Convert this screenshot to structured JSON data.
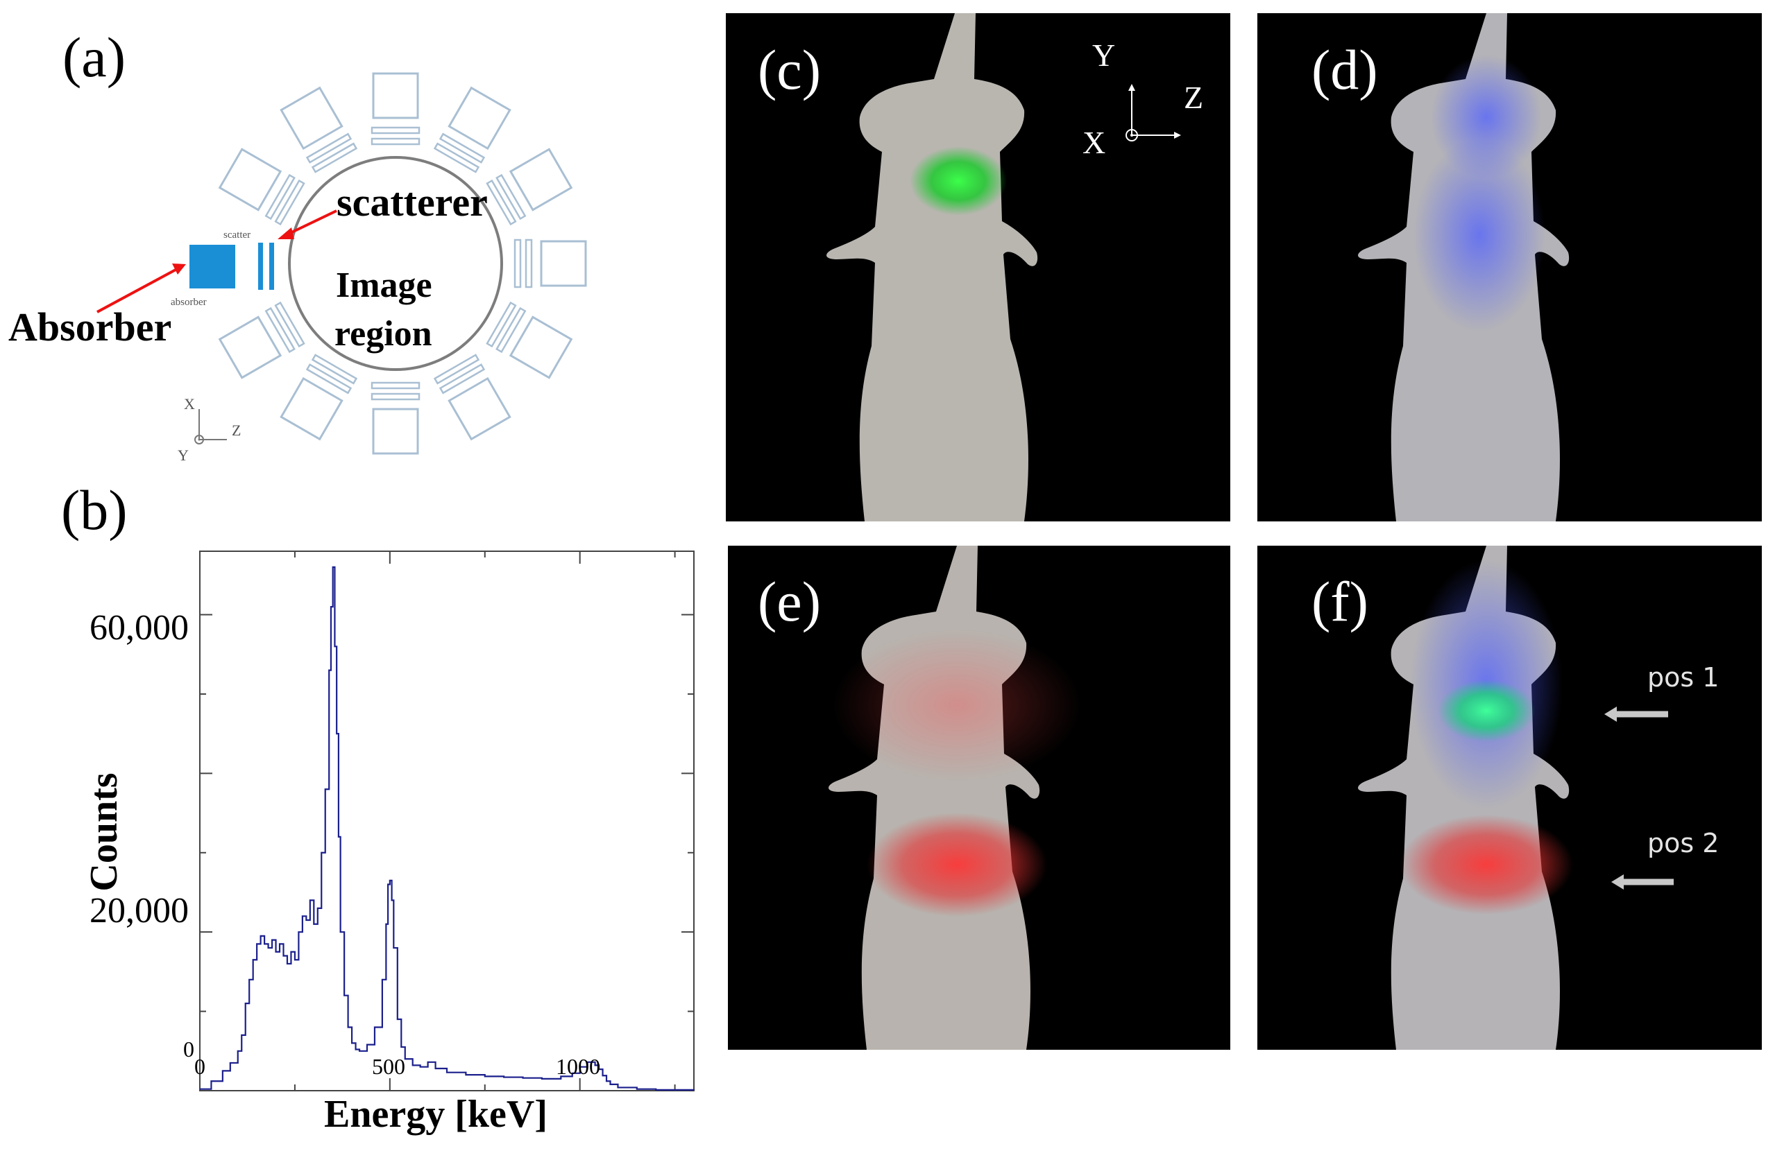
{
  "panels": {
    "a": "(a)",
    "b": "(b)",
    "c": "(c)",
    "d": "(d)",
    "e": "(e)",
    "f": "(f)"
  },
  "diagram": {
    "scatterer_label": "scatterer",
    "absorber_label": "Absorber",
    "image_region_line1": "Image",
    "image_region_line2": "region",
    "small_scatterer": "scatter",
    "small_absorber": "absorber",
    "axes": {
      "x": "X",
      "y": "Y",
      "z": "Z"
    },
    "colors": {
      "detector_outline": "#a9bfd3",
      "absorber_fill": "#1b8fd6",
      "arrow": "#ee1111"
    }
  },
  "photo_axes": {
    "y": "Y",
    "z": "Z",
    "x": "X"
  },
  "photo_f_annotations": {
    "pos1": "pos 1",
    "pos2": "pos 2"
  },
  "chart_data": {
    "type": "line",
    "xlabel": "Energy [keV]",
    "ylabel": "Counts",
    "xlim": [
      0,
      1300
    ],
    "ylim": [
      0,
      68000
    ],
    "x_ticks": [
      "0",
      "500",
      "1000"
    ],
    "y_ticks": [
      "0",
      "20,000",
      "60,000"
    ],
    "line_color": "#1a1f8c",
    "x": [
      0,
      30,
      60,
      80,
      100,
      110,
      120,
      130,
      140,
      150,
      160,
      170,
      180,
      190,
      200,
      210,
      220,
      230,
      240,
      250,
      260,
      270,
      280,
      290,
      300,
      310,
      320,
      330,
      340,
      345,
      350,
      355,
      360,
      365,
      370,
      380,
      390,
      400,
      410,
      420,
      440,
      460,
      480,
      490,
      495,
      500,
      505,
      510,
      520,
      530,
      540,
      560,
      580,
      600,
      620,
      650,
      700,
      750,
      800,
      850,
      900,
      950,
      980,
      1000,
      1020,
      1040,
      1050,
      1060,
      1070,
      1080,
      1100,
      1150,
      1200,
      1300
    ],
    "y": [
      200,
      1200,
      2500,
      3500,
      5000,
      7000,
      11000,
      14000,
      16500,
      18500,
      19500,
      18500,
      18000,
      19000,
      17500,
      18500,
      17000,
      16000,
      17500,
      16500,
      20000,
      22000,
      21500,
      24000,
      21000,
      23000,
      30000,
      38000,
      53000,
      61000,
      66000,
      56000,
      45000,
      32000,
      20000,
      12000,
      8000,
      6000,
      5200,
      5000,
      5800,
      8000,
      14000,
      21000,
      26000,
      26500,
      24000,
      18000,
      9000,
      5500,
      4000,
      3200,
      3000,
      3600,
      2800,
      2300,
      2000,
      1800,
      1700,
      1600,
      1500,
      1800,
      2200,
      3000,
      3600,
      3200,
      2700,
      1900,
      1200,
      800,
      400,
      200,
      100,
      50
    ]
  }
}
